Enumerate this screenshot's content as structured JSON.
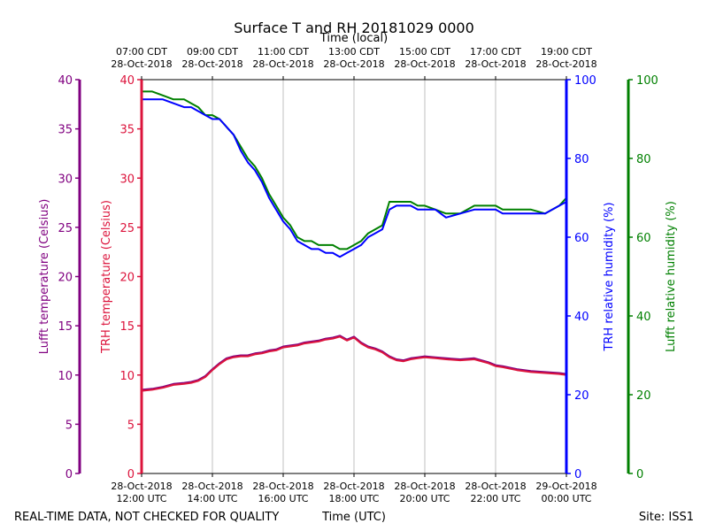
{
  "chart_data": {
    "type": "line",
    "title": "Surface T and RH 20181029 0000",
    "top_axis_title": "Time (local)",
    "xlabel": "Time (UTC)",
    "x_range_hours": [
      12,
      24
    ],
    "x_ticks": [
      {
        "hour": 12,
        "bottom1": "28-Oct-2018",
        "bottom2": "12:00 UTC",
        "top1": "07:00 CDT",
        "top2": "28-Oct-2018"
      },
      {
        "hour": 14,
        "bottom1": "28-Oct-2018",
        "bottom2": "14:00 UTC",
        "top1": "09:00 CDT",
        "top2": "28-Oct-2018"
      },
      {
        "hour": 16,
        "bottom1": "28-Oct-2018",
        "bottom2": "16:00 UTC",
        "top1": "11:00 CDT",
        "top2": "28-Oct-2018"
      },
      {
        "hour": 18,
        "bottom1": "28-Oct-2018",
        "bottom2": "18:00 UTC",
        "top1": "13:00 CDT",
        "top2": "28-Oct-2018"
      },
      {
        "hour": 20,
        "bottom1": "28-Oct-2018",
        "bottom2": "20:00 UTC",
        "top1": "15:00 CDT",
        "top2": "28-Oct-2018"
      },
      {
        "hour": 22,
        "bottom1": "28-Oct-2018",
        "bottom2": "22:00 UTC",
        "top1": "17:00 CDT",
        "top2": "28-Oct-2018"
      },
      {
        "hour": 24,
        "bottom1": "29-Oct-2018",
        "bottom2": "00:00 UTC",
        "top1": "19:00 CDT",
        "top2": "28-Oct-2018"
      }
    ],
    "axes": {
      "lufft_temp": {
        "label": "Lufft temperature (Celsius)",
        "ylim": [
          0,
          40
        ],
        "ticks": [
          "0",
          "5",
          "10",
          "15",
          "20",
          "25",
          "30",
          "35",
          "40"
        ],
        "color": "#800080"
      },
      "trh_temp": {
        "label": "TRH temperature (Celsius)",
        "ylim": [
          0,
          40
        ],
        "ticks": [
          "0",
          "5",
          "10",
          "15",
          "20",
          "25",
          "30",
          "35",
          "40"
        ],
        "color": "#dc143c"
      },
      "trh_rh": {
        "label": "TRH relative humidity (%)",
        "ylim": [
          0,
          100
        ],
        "ticks": [
          "0",
          "20",
          "40",
          "60",
          "80",
          "100"
        ],
        "color": "#0000ff"
      },
      "lufft_rh": {
        "label": "Lufft relative humidity (%)",
        "ylim": [
          0,
          100
        ],
        "ticks": [
          "0",
          "20",
          "40",
          "60",
          "80",
          "100"
        ],
        "color": "#008000"
      }
    },
    "series": [
      {
        "name": "Lufft relative humidity",
        "axis": "lufft_rh",
        "color": "#008000",
        "x": [
          12.0,
          12.3,
          12.6,
          12.9,
          13.2,
          13.4,
          13.6,
          13.8,
          14.0,
          14.2,
          14.4,
          14.6,
          14.8,
          15.0,
          15.2,
          15.4,
          15.6,
          15.8,
          16.0,
          16.2,
          16.4,
          16.6,
          16.8,
          17.0,
          17.2,
          17.4,
          17.6,
          17.8,
          18.0,
          18.2,
          18.4,
          18.6,
          18.8,
          19.0,
          19.2,
          19.4,
          19.6,
          19.8,
          20.0,
          20.3,
          20.6,
          21.0,
          21.4,
          21.8,
          22.0,
          22.2,
          22.6,
          23.0,
          23.4,
          23.8,
          24.0
        ],
        "y": [
          97,
          97,
          96,
          95,
          95,
          94,
          93,
          91,
          91,
          90,
          88,
          86,
          83,
          80,
          78,
          75,
          71,
          68,
          65,
          63,
          60,
          59,
          59,
          58,
          58,
          58,
          57,
          57,
          58,
          59,
          61,
          62,
          63,
          69,
          69,
          69,
          69,
          68,
          68,
          67,
          66,
          66,
          68,
          68,
          68,
          67,
          67,
          67,
          66,
          68,
          70
        ]
      },
      {
        "name": "TRH relative humidity",
        "axis": "trh_rh",
        "color": "#0000ff",
        "x": [
          12.0,
          12.3,
          12.6,
          12.9,
          13.2,
          13.4,
          13.6,
          13.8,
          14.0,
          14.2,
          14.4,
          14.6,
          14.8,
          15.0,
          15.2,
          15.4,
          15.6,
          15.8,
          16.0,
          16.2,
          16.4,
          16.6,
          16.8,
          17.0,
          17.2,
          17.4,
          17.6,
          17.8,
          18.0,
          18.2,
          18.4,
          18.6,
          18.8,
          19.0,
          19.2,
          19.4,
          19.6,
          19.8,
          20.0,
          20.3,
          20.6,
          21.0,
          21.4,
          21.8,
          22.0,
          22.2,
          22.6,
          23.0,
          23.4,
          23.8,
          24.0
        ],
        "y": [
          95,
          95,
          95,
          94,
          93,
          93,
          92,
          91,
          90,
          90,
          88,
          86,
          82,
          79,
          77,
          74,
          70,
          67,
          64,
          62,
          59,
          58,
          57,
          57,
          56,
          56,
          55,
          56,
          57,
          58,
          60,
          61,
          62,
          67,
          68,
          68,
          68,
          67,
          67,
          67,
          65,
          66,
          67,
          67,
          67,
          66,
          66,
          66,
          66,
          68,
          69
        ]
      },
      {
        "name": "Lufft temperature",
        "axis": "lufft_temp",
        "color": "#800080",
        "x": [
          12.0,
          12.3,
          12.6,
          12.9,
          13.2,
          13.4,
          13.6,
          13.8,
          14.0,
          14.2,
          14.4,
          14.6,
          14.8,
          15.0,
          15.2,
          15.4,
          15.6,
          15.8,
          16.0,
          16.2,
          16.4,
          16.6,
          16.8,
          17.0,
          17.2,
          17.4,
          17.6,
          17.8,
          18.0,
          18.2,
          18.4,
          18.6,
          18.8,
          19.0,
          19.2,
          19.4,
          19.6,
          19.8,
          20.0,
          20.3,
          20.6,
          21.0,
          21.4,
          21.8,
          22.0,
          22.2,
          22.6,
          23.0,
          23.4,
          23.8,
          24.0
        ],
        "y": [
          8.5,
          8.6,
          8.8,
          9.1,
          9.2,
          9.3,
          9.5,
          9.9,
          10.6,
          11.2,
          11.7,
          11.9,
          12.0,
          12.0,
          12.2,
          12.3,
          12.5,
          12.6,
          12.9,
          13.0,
          13.1,
          13.3,
          13.4,
          13.5,
          13.7,
          13.8,
          14.0,
          13.6,
          13.9,
          13.3,
          12.9,
          12.7,
          12.4,
          11.9,
          11.6,
          11.5,
          11.7,
          11.8,
          11.9,
          11.8,
          11.7,
          11.6,
          11.7,
          11.3,
          11.0,
          10.9,
          10.6,
          10.4,
          10.3,
          10.2,
          10.1
        ]
      },
      {
        "name": "TRH temperature",
        "axis": "trh_temp",
        "color": "#dc143c",
        "x": [
          12.0,
          12.3,
          12.6,
          12.9,
          13.2,
          13.4,
          13.6,
          13.8,
          14.0,
          14.2,
          14.4,
          14.6,
          14.8,
          15.0,
          15.2,
          15.4,
          15.6,
          15.8,
          16.0,
          16.2,
          16.4,
          16.6,
          16.8,
          17.0,
          17.2,
          17.4,
          17.6,
          17.8,
          18.0,
          18.2,
          18.4,
          18.6,
          18.8,
          19.0,
          19.2,
          19.4,
          19.6,
          19.8,
          20.0,
          20.3,
          20.6,
          21.0,
          21.4,
          21.8,
          22.0,
          22.2,
          22.6,
          23.0,
          23.4,
          23.8,
          24.0
        ],
        "y": [
          8.4,
          8.5,
          8.7,
          9.0,
          9.1,
          9.2,
          9.4,
          9.8,
          10.5,
          11.1,
          11.6,
          11.8,
          11.9,
          11.9,
          12.1,
          12.2,
          12.4,
          12.5,
          12.8,
          12.9,
          13.0,
          13.2,
          13.3,
          13.4,
          13.6,
          13.7,
          13.9,
          13.5,
          13.8,
          13.2,
          12.8,
          12.6,
          12.3,
          11.8,
          11.5,
          11.4,
          11.6,
          11.7,
          11.8,
          11.7,
          11.6,
          11.5,
          11.6,
          11.2,
          10.9,
          10.8,
          10.5,
          10.3,
          10.2,
          10.1,
          10.0
        ]
      }
    ]
  },
  "footer": {
    "left_note": "REAL-TIME DATA, NOT CHECKED FOR QUALITY",
    "xlabel": "Time (UTC)",
    "site": "Site: ISS1"
  }
}
